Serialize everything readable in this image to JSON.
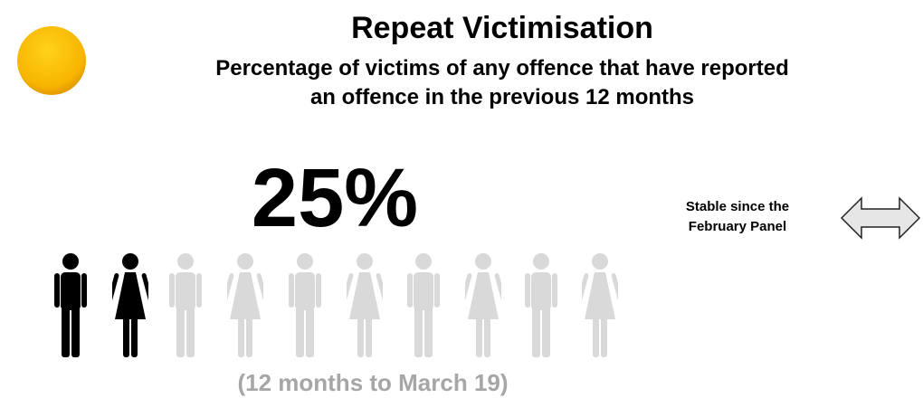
{
  "header": {
    "title": "Repeat Victimisation",
    "subtitle_line1": "Percentage of victims of any offence that have reported",
    "subtitle_line2": "an offence in the previous 12 months"
  },
  "figure": {
    "value": "25%",
    "period": "(12 months to March 19)"
  },
  "trend": {
    "line1": "Stable since the",
    "line2": "February Panel"
  }
}
